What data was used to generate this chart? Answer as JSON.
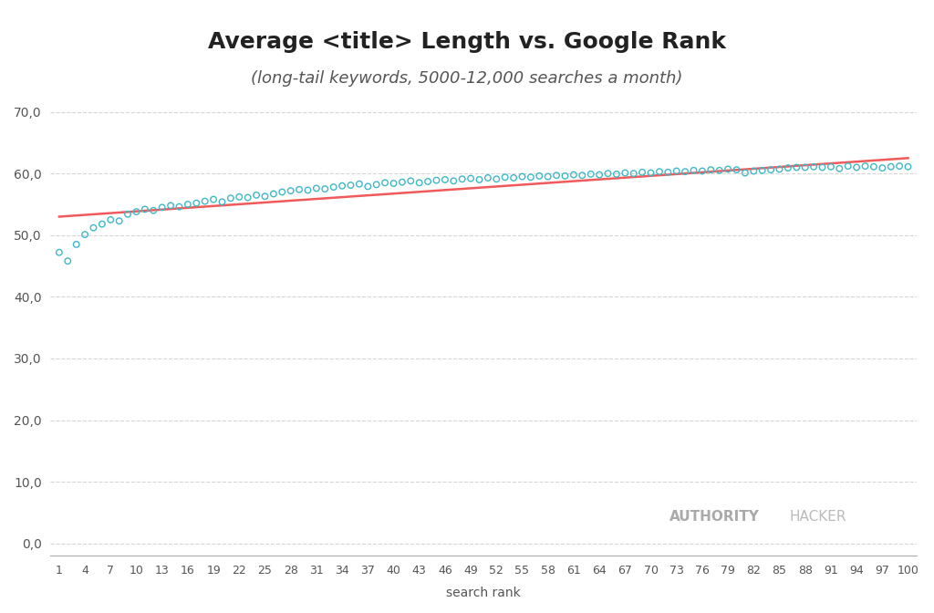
{
  "title": "Average <title> Length vs. Google Rank",
  "subtitle": "(long-tail keywords, 5000-12,000 searches a month)",
  "xlabel": "search rank",
  "background_color": "#ffffff",
  "scatter_color": "#40b8c8",
  "line_color": "#f05a5a",
  "grid_color": "#cccccc",
  "yticks": [
    0.0,
    10.0,
    20.0,
    30.0,
    40.0,
    50.0,
    60.0,
    70.0
  ],
  "xtick_labels": [
    "1",
    "4",
    "7",
    "10",
    "13",
    "16",
    "19",
    "22",
    "25",
    "28",
    "31",
    "34",
    "37",
    "40",
    "43",
    "46",
    "49",
    "52",
    "55",
    "58",
    "61",
    "64",
    "67",
    "70",
    "73",
    "76",
    "79",
    "82",
    "85",
    "88",
    "91",
    "94",
    "97",
    "100"
  ],
  "ylim": [
    -2,
    73
  ],
  "xlim": [
    0,
    101
  ],
  "watermark_bold": "AUTHORITY",
  "watermark_light": "HACKER",
  "y_values": [
    47.2,
    45.8,
    48.5,
    50.1,
    51.2,
    51.8,
    52.5,
    52.3,
    53.4,
    53.8,
    54.2,
    54.0,
    54.5,
    54.8,
    54.6,
    55.0,
    55.2,
    55.5,
    55.8,
    55.4,
    56.0,
    56.2,
    56.1,
    56.5,
    56.3,
    56.7,
    57.0,
    57.2,
    57.4,
    57.3,
    57.6,
    57.5,
    57.8,
    58.0,
    58.1,
    58.3,
    57.9,
    58.2,
    58.5,
    58.4,
    58.6,
    58.8,
    58.5,
    58.7,
    58.9,
    59.0,
    58.8,
    59.1,
    59.2,
    59.0,
    59.3,
    59.1,
    59.4,
    59.3,
    59.5,
    59.4,
    59.6,
    59.5,
    59.7,
    59.6,
    59.8,
    59.7,
    59.9,
    59.8,
    60.0,
    59.9,
    60.1,
    60.0,
    60.2,
    60.1,
    60.3,
    60.2,
    60.4,
    60.3,
    60.5,
    60.4,
    60.6,
    60.5,
    60.7,
    60.6,
    60.1,
    60.4,
    60.5,
    60.6,
    60.7,
    60.9,
    61.0,
    61.0,
    61.1,
    61.0,
    61.1,
    60.8,
    61.2,
    61.0,
    61.2,
    61.1,
    60.9,
    61.1,
    61.2,
    61.1
  ],
  "trendline_start": 53.0,
  "trendline_end": 62.5
}
